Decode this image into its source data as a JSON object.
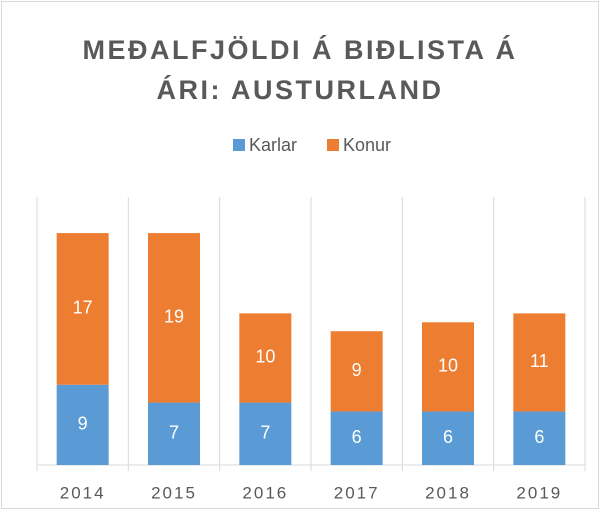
{
  "chart_data": {
    "type": "bar",
    "stacked": true,
    "title": "MEÐALFJÖLDI Á BIÐLISTA Á ÁRI: AUSTURLAND",
    "categories": [
      "2014",
      "2015",
      "2016",
      "2017",
      "2018",
      "2019"
    ],
    "series": [
      {
        "name": "Karlar",
        "color": "#5b9bd5",
        "values": [
          9,
          7,
          7,
          6,
          6,
          6
        ]
      },
      {
        "name": "Konur",
        "color": "#ed7d31",
        "values": [
          17,
          19,
          10,
          9,
          10,
          11
        ]
      }
    ],
    "legend": "top"
  }
}
